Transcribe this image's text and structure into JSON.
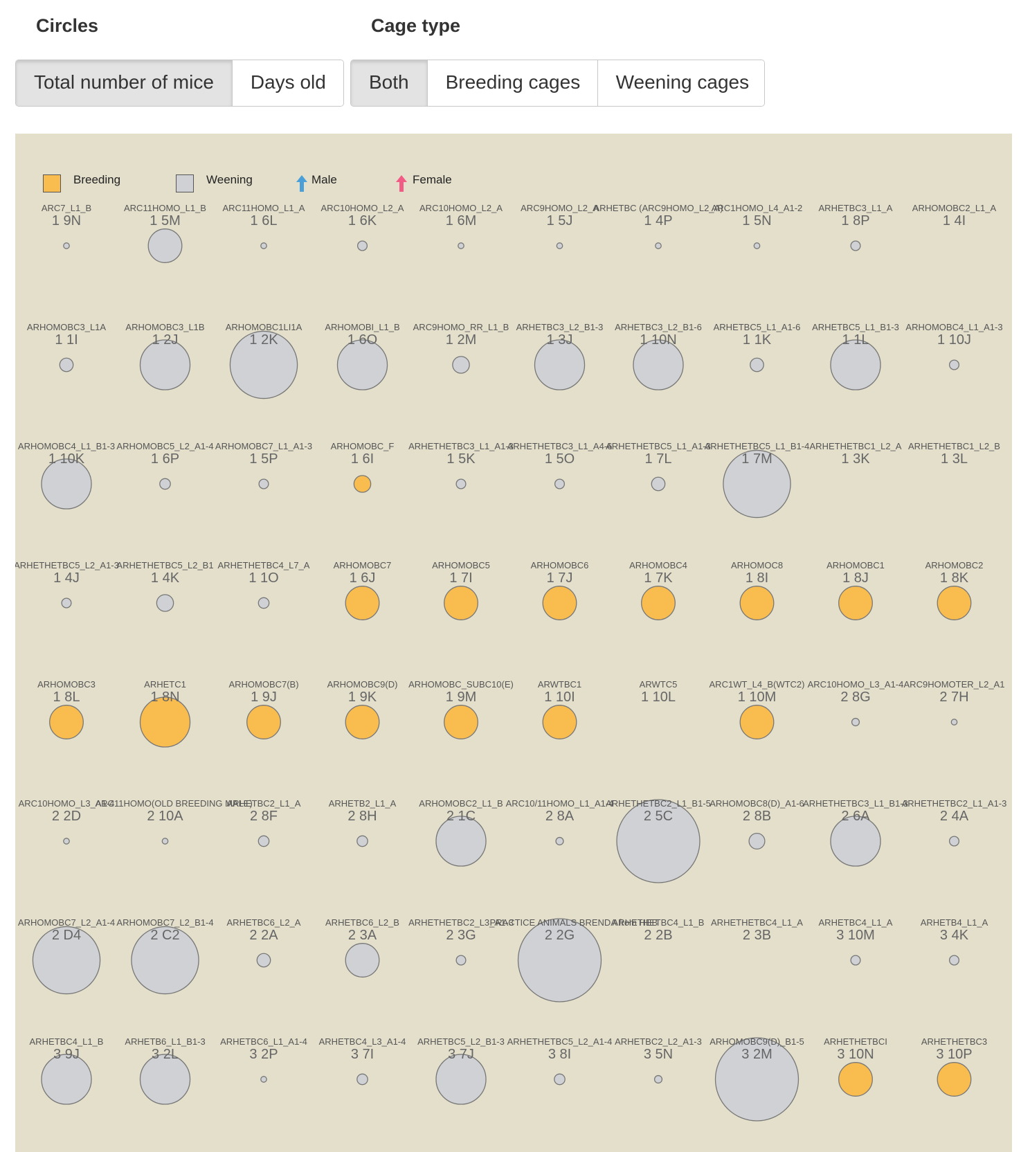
{
  "controls": {
    "circles_title": "Circles",
    "cage_type_title": "Cage type",
    "circles_options": [
      "Total number of mice",
      "Days old"
    ],
    "circles_selected": "Total number of mice",
    "cage_type_options": [
      "Both",
      "Breeding cages",
      "Weening cages"
    ],
    "cage_type_selected": "Both"
  },
  "legend": {
    "breeding": "Breeding",
    "weening": "Weening",
    "male": "Male",
    "female": "Female"
  },
  "colors": {
    "breeding": "#f9bc4f",
    "weening": "#cfd1d4",
    "stroke": "#777777",
    "panel": "#e3dfcb",
    "male": "#4a9fd9",
    "female": "#f15b86"
  },
  "rows": [
    [
      {
        "name": "ARC7_L1_B",
        "loc": "1 9N",
        "type": "weening",
        "mice": 0.3
      },
      {
        "name": "ARC11HOMO_L1_B",
        "loc": "1 5M",
        "type": "weening",
        "mice": 10
      },
      {
        "name": "ARC11HOMO_L1_A",
        "loc": "1 6L",
        "type": "weening",
        "mice": 0.3
      },
      {
        "name": "ARC10HOMO_L2_A",
        "loc": "1 6K",
        "type": "weening",
        "mice": 0.8
      },
      {
        "name": "ARC10HOMO_L2_A",
        "loc": "1 6M",
        "type": "weening",
        "mice": 0.3
      },
      {
        "name": "ARC9HOMO_L2_A",
        "loc": "1 5J",
        "type": "weening",
        "mice": 0.3
      },
      {
        "name": "ARHETBC (ARC9HOMO_L2_A)",
        "loc": "1 4P",
        "type": "weening",
        "mice": 0.3
      },
      {
        "name": "ARC1HOMO_L4_A1-2",
        "loc": "1 5N",
        "type": "weening",
        "mice": 0.3
      },
      {
        "name": "ARHETBC3_L1_A",
        "loc": "1 8P",
        "type": "weening",
        "mice": 0.8
      },
      {
        "name": "ARHOMOBC2_L1_A",
        "loc": "1 4I",
        "type": "weening",
        "mice": 0
      }
    ],
    [
      {
        "name": "ARHOMOBC3_L1A",
        "loc": "1 1I",
        "type": "weening",
        "mice": 1.6
      },
      {
        "name": "ARHOMOBC3_L1B",
        "loc": "1 2J",
        "type": "weening",
        "mice": 22
      },
      {
        "name": "ARHOMOBC1LI1A",
        "loc": "1 2K",
        "type": "weening",
        "mice": 40
      },
      {
        "name": "ARHOMOBI_L1_B",
        "loc": "1 6O",
        "type": "weening",
        "mice": 22
      },
      {
        "name": "ARC9HOMO_RR_L1_B",
        "loc": "1 2M",
        "type": "weening",
        "mice": 2.5
      },
      {
        "name": "ARHETBC3_L2_B1-3",
        "loc": "1 3J",
        "type": "weening",
        "mice": 22
      },
      {
        "name": "ARHETBC3_L2_B1-6",
        "loc": "1 10N",
        "type": "weening",
        "mice": 22
      },
      {
        "name": "ARHETBC5_L1_A1-6",
        "loc": "1 1K",
        "type": "weening",
        "mice": 1.6
      },
      {
        "name": "ARHETBC5_L1_B1-3",
        "loc": "1 1L",
        "type": "weening",
        "mice": 22
      },
      {
        "name": "ARHOMOBC4_L1_A1-3",
        "loc": "1 10J",
        "type": "weening",
        "mice": 0.8
      }
    ],
    [
      {
        "name": "ARHOMOBC4_L1_B1-3",
        "loc": "1 10K",
        "type": "weening",
        "mice": 22
      },
      {
        "name": "ARHOMOBC5_L2_A1-4",
        "loc": "1 6P",
        "type": "weening",
        "mice": 1
      },
      {
        "name": "ARHOMOBC7_L1_A1-3",
        "loc": "1 5P",
        "type": "weening",
        "mice": 0.8
      },
      {
        "name": "ARHOMOBC_F",
        "loc": "1 6I",
        "type": "breeding",
        "mice": 2.5
      },
      {
        "name": "ARHETHETBC3_L1_A1-3",
        "loc": "1 5K",
        "type": "weening",
        "mice": 0.8
      },
      {
        "name": "ARHETHETBC3_L1_A4-6",
        "loc": "1 5O",
        "type": "weening",
        "mice": 0.8
      },
      {
        "name": "ARHETHETBC5_L1_A1-3",
        "loc": "1 7L",
        "type": "weening",
        "mice": 1.6
      },
      {
        "name": "ARHETHETBC5_L1_B1-4",
        "loc": "1 7M",
        "type": "weening",
        "mice": 40
      },
      {
        "name": "ARHETHETBC1_L2_A",
        "loc": "1 3K",
        "type": "weening",
        "mice": 0
      },
      {
        "name": "ARHETHETBC1_L2_B",
        "loc": "1 3L",
        "type": "weening",
        "mice": 0
      }
    ],
    [
      {
        "name": "ARHETHETBC5_L2_A1-3",
        "loc": "1 4J",
        "type": "weening",
        "mice": 0.8
      },
      {
        "name": "ARHETHETBC5_L2_B1",
        "loc": "1 4K",
        "type": "weening",
        "mice": 2.5
      },
      {
        "name": "ARHETHETBC4_L7_A",
        "loc": "1 1O",
        "type": "weening",
        "mice": 1
      },
      {
        "name": "ARHOMOBC7",
        "loc": "1 6J",
        "type": "breeding",
        "mice": 10
      },
      {
        "name": "ARHOMOBC5",
        "loc": "1 7I",
        "type": "breeding",
        "mice": 10
      },
      {
        "name": "ARHOMOBC6",
        "loc": "1 7J",
        "type": "breeding",
        "mice": 10
      },
      {
        "name": "ARHOMOBC4",
        "loc": "1 7K",
        "type": "breeding",
        "mice": 10
      },
      {
        "name": "ARHOMOC8",
        "loc": "1 8I",
        "type": "breeding",
        "mice": 10
      },
      {
        "name": "ARHOMOBC1",
        "loc": "1 8J",
        "type": "breeding",
        "mice": 10
      },
      {
        "name": "ARHOMOBC2",
        "loc": "1 8K",
        "type": "breeding",
        "mice": 10
      }
    ],
    [
      {
        "name": "ARHOMOBC3",
        "loc": "1 8L",
        "type": "breeding",
        "mice": 10
      },
      {
        "name": "ARHETC1",
        "loc": "1 8N",
        "type": "breeding",
        "mice": 22
      },
      {
        "name": "ARHOMOBC7(B)",
        "loc": "1 9J",
        "type": "breeding",
        "mice": 10
      },
      {
        "name": "ARHOMOBC9(D)",
        "loc": "1 9K",
        "type": "breeding",
        "mice": 10
      },
      {
        "name": "ARHOMOBC_SUBC10(E)",
        "loc": "1 9M",
        "type": "breeding",
        "mice": 10
      },
      {
        "name": "ARWTBC1",
        "loc": "1 10I",
        "type": "breeding",
        "mice": 10
      },
      {
        "name": "ARWTC5",
        "loc": "1 10L",
        "type": "breeding",
        "mice": 0
      },
      {
        "name": "ARC1WT_L4_B(WTC2)",
        "loc": "1 10M",
        "type": "breeding",
        "mice": 10
      },
      {
        "name": "ARC10HOMO_L3_A1-4",
        "loc": "2 8G",
        "type": "weening",
        "mice": 0.5
      },
      {
        "name": "ARC9HOMOTER_L2_A1",
        "loc": "2 7H",
        "type": "weening",
        "mice": 0.3
      }
    ],
    [
      {
        "name": "ARC10HOMO_L3_A1-4",
        "loc": "2 2D",
        "type": "weening",
        "mice": 0.3
      },
      {
        "name": "ARC11HOMO(OLD BREEDING MALE)",
        "loc": "2 10A",
        "type": "weening",
        "mice": 0.3
      },
      {
        "name": "ARHETBC2_L1_A",
        "loc": "2 8F",
        "type": "weening",
        "mice": 1
      },
      {
        "name": "ARHETB2_L1_A",
        "loc": "2 8H",
        "type": "weening",
        "mice": 1
      },
      {
        "name": "ARHOMOBC2_L1_B",
        "loc": "2 1C",
        "type": "weening",
        "mice": 22
      },
      {
        "name": "ARC10/11HOMO_L1_A1-4",
        "loc": "2 8A",
        "type": "weening",
        "mice": 0.5
      },
      {
        "name": "ARHETHETBC2_L1_B1-5",
        "loc": "2 5C",
        "type": "weening",
        "mice": 61
      },
      {
        "name": "ARHOMOBC8(D)_A1-6",
        "loc": "2 8B",
        "type": "weening",
        "mice": 2.2
      },
      {
        "name": "ARHETHETBC3_L1_B1-3",
        "loc": "2 6A",
        "type": "weening",
        "mice": 22
      },
      {
        "name": "ARHETHETBC2_L1_A1-3",
        "loc": "2 4A",
        "type": "weening",
        "mice": 0.8
      }
    ],
    [
      {
        "name": "ARHOMOBC7_L2_A1-4",
        "loc": "2 D4",
        "type": "weening",
        "mice": 40
      },
      {
        "name": "ARHOMOBC7_L2_B1-4",
        "loc": "2 C2",
        "type": "weening",
        "mice": 40
      },
      {
        "name": "ARHETBC6_L2_A",
        "loc": "2 2A",
        "type": "weening",
        "mice": 1.6
      },
      {
        "name": "ARHETBC6_L2_B",
        "loc": "2 3A",
        "type": "weening",
        "mice": 10
      },
      {
        "name": "ARHETHETBC2_L3_A1-3",
        "loc": "2 3G",
        "type": "weening",
        "mice": 0.8
      },
      {
        "name": "PRACTICE ANIMALS BRENDA from HEB",
        "loc": "2 2G",
        "type": "weening",
        "mice": 61
      },
      {
        "name": "ARHETHETBC4_L1_B",
        "loc": "2 2B",
        "type": "weening",
        "mice": 0
      },
      {
        "name": "ARHETHETBC4_L1_A",
        "loc": "2 3B",
        "type": "weening",
        "mice": 0
      },
      {
        "name": "ARHETBC4_L1_A",
        "loc": "3 10M",
        "type": "weening",
        "mice": 0.8
      },
      {
        "name": "ARHETB4_L1_A",
        "loc": "3 4K",
        "type": "weening",
        "mice": 0.8
      }
    ],
    [
      {
        "name": "ARHETBC4_L1_B",
        "loc": "3 9J",
        "type": "weening",
        "mice": 22
      },
      {
        "name": "ARHETB6_L1_B1-3",
        "loc": "3 2L",
        "type": "weening",
        "mice": 22
      },
      {
        "name": "ARHETBC6_L1_A1-4",
        "loc": "3 2P",
        "type": "weening",
        "mice": 0.3
      },
      {
        "name": "ARHETBC4_L3_A1-4",
        "loc": "3 7I",
        "type": "weening",
        "mice": 1
      },
      {
        "name": "ARHETBC5_L2_B1-3",
        "loc": "3 7J",
        "type": "weening",
        "mice": 22
      },
      {
        "name": "ARHETHETBC5_L2_A1-4",
        "loc": "3 8I",
        "type": "weening",
        "mice": 1
      },
      {
        "name": "ARHETBC2_L2_A1-3",
        "loc": "3 5N",
        "type": "weening",
        "mice": 0.5
      },
      {
        "name": "ARHOMOBC9(D)_B1-5",
        "loc": "3 2M",
        "type": "weening",
        "mice": 61
      },
      {
        "name": "ARHETHETBCI",
        "loc": "3 10N",
        "type": "breeding",
        "mice": 10
      },
      {
        "name": "ARHETHETBC3",
        "loc": "3 10P",
        "type": "breeding",
        "mice": 10
      }
    ]
  ]
}
